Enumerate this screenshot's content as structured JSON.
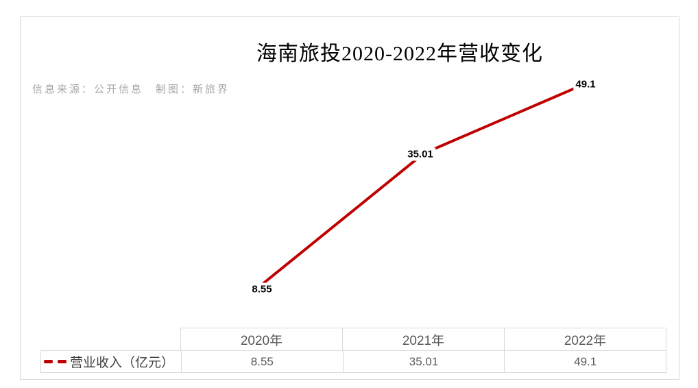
{
  "chart_data": {
    "type": "line",
    "title": "海南旅投2020-2022年营收变化",
    "source_note": "信息来源：公开信息　制图：新旅界",
    "categories": [
      "2020年",
      "2021年",
      "2022年"
    ],
    "series": [
      {
        "name": "营业收入（亿元）",
        "values": [
          8.55,
          35.01,
          49.1
        ]
      }
    ],
    "data_labels": [
      "8.55",
      "35.01",
      "49.1"
    ],
    "line_color": "#c00000",
    "line_style_legend": "dashed",
    "legend_position": "bottom-table-left",
    "grid": false,
    "axes_visible": false
  },
  "table": {
    "headers": [
      "2020年",
      "2021年",
      "2022年"
    ],
    "legend_label": "营业收入（亿元）",
    "values": [
      "8.55",
      "35.01",
      "49.1"
    ]
  },
  "colors": {
    "line": "#c00000",
    "border": "#d9d9d9",
    "table_text": "#595959",
    "legend_text": "#404040",
    "note_text": "#a6a6a6",
    "label_text": "#000000"
  }
}
